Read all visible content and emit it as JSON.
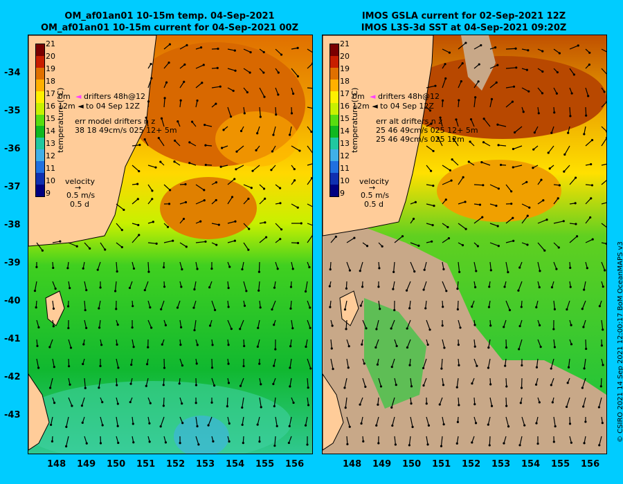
{
  "left": {
    "title_line1": "OM_af01an01 10-15m temp. 04-Sep-2021",
    "title_line2": "OM_af01an01 10-15m current for 04-Sep-2021 00Z",
    "legend_drifters": "drifters 48h@12",
    "legend_0m": "0m",
    "legend_12m": "12m",
    "legend_to": "to 04 Sep 12Z",
    "err_line1": "err model drifters n z",
    "err_line2": "38 18 49cm/s 025 12+ 5m",
    "velocity": "velocity",
    "vel_speed": "0.5 m/s",
    "vel_days": "0.5 d"
  },
  "right": {
    "title_line1": "IMOS GSLA current for 02-Sep-2021 12Z",
    "title_line2": "IMOS L3S-3d SST at 04-Sep-2021 09:20Z",
    "legend_drifters": "drifters 48h@12",
    "legend_0m": "0m",
    "legend_12m": "12m",
    "legend_to": "to 04 Sep 12Z",
    "err_line1": "err alt drifters n z",
    "err_line2": "25 46 49cm/s 025 12+ 5m",
    "err_line3": "25 46 49cm/s 025 12m",
    "velocity": "velocity",
    "vel_speed": "0.5 m/s",
    "vel_days": "0.5 d"
  },
  "colorbar": {
    "title": "temperature (°C)",
    "ticks": [
      "21",
      "20",
      "19",
      "18",
      "17",
      "16",
      "15",
      "14",
      "13",
      "12",
      "11",
      "10",
      "9"
    ],
    "colors": [
      "#7a0000",
      "#c81e00",
      "#e07000",
      "#ffb000",
      "#fff000",
      "#c8f000",
      "#58dc10",
      "#10b820",
      "#20c8a0",
      "#40b0e8",
      "#2070e0",
      "#1030b0",
      "#000080"
    ]
  },
  "axes": {
    "lat_ticks": [
      "-34",
      "-35",
      "-36",
      "-37",
      "-38",
      "-39",
      "-40",
      "-41",
      "-42",
      "-43"
    ],
    "lon_ticks": [
      "148",
      "149",
      "150",
      "151",
      "152",
      "153",
      "154",
      "155",
      "156"
    ]
  },
  "credit": "© CSIRO 2021  14 Sep 2021 12:00:17 BoM OceanMAPS v3"
}
